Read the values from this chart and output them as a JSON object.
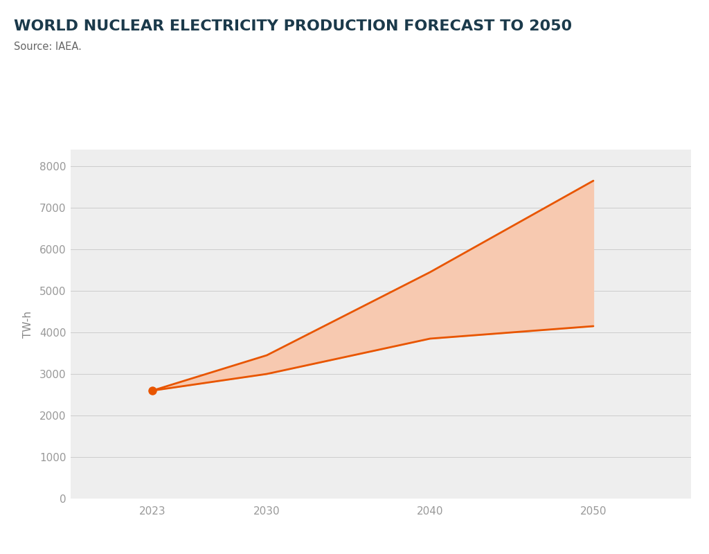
{
  "title": "WORLD NUCLEAR ELECTRICITY PRODUCTION FORECAST TO 2050",
  "source": "Source: IAEA.",
  "ylabel": "TW-h",
  "title_color": "#1b3a4b",
  "source_color": "#666666",
  "ylabel_color": "#888888",
  "background_color": "#eeeeee",
  "fig_background": "#ffffff",
  "years": [
    2023,
    2030,
    2040,
    2050
  ],
  "high_case": [
    2600,
    3450,
    5450,
    7650
  ],
  "low_case": [
    2600,
    3000,
    3850,
    4150
  ],
  "fill_color": "#f7c9b0",
  "line_color": "#e85500",
  "dot_color": "#e85500",
  "ylim": [
    0,
    8400
  ],
  "yticks": [
    0,
    1000,
    2000,
    3000,
    4000,
    5000,
    6000,
    7000,
    8000
  ],
  "xticks": [
    2023,
    2030,
    2040,
    2050
  ],
  "accent_color": "#e85500",
  "title_fontsize": 16,
  "source_fontsize": 10.5,
  "tick_fontsize": 11,
  "ylabel_fontsize": 11,
  "xlim_left": 2018,
  "xlim_right": 2056
}
